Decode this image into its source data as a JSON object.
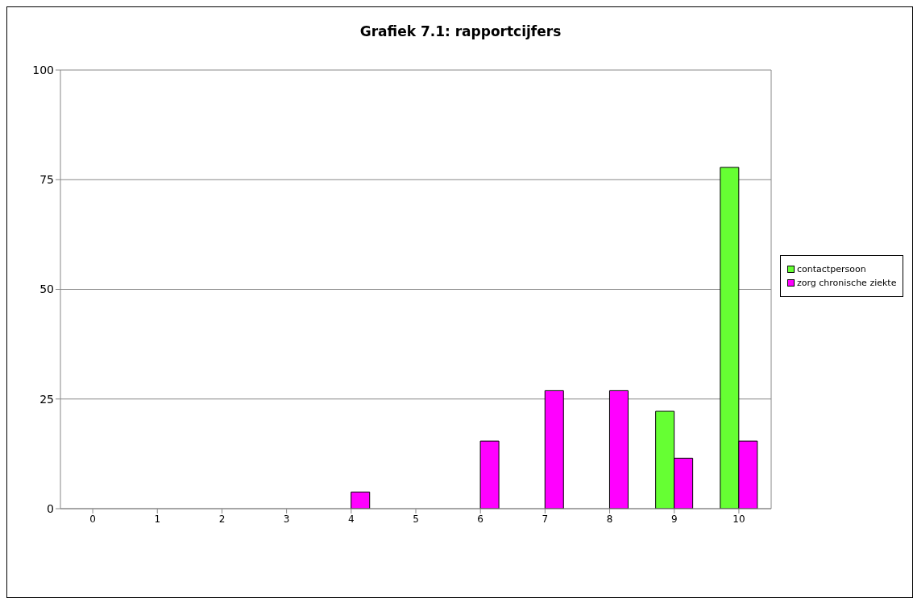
{
  "chart_data": {
    "type": "bar",
    "title": "Grafiek 7.1: rapportcijfers",
    "categories": [
      "0",
      "1",
      "2",
      "3",
      "4",
      "5",
      "6",
      "7",
      "8",
      "9",
      "10"
    ],
    "series": [
      {
        "name": "contactpersoon",
        "color": "#66ff33",
        "values": [
          0,
          0,
          0,
          0,
          0,
          0,
          0,
          0,
          0,
          22.2,
          77.8
        ]
      },
      {
        "name": "zorg chronische ziekte",
        "color": "#ff00ff",
        "values": [
          0,
          0,
          0,
          0,
          3.8,
          0,
          15.4,
          26.9,
          26.9,
          11.5,
          15.4
        ]
      }
    ],
    "ylim": [
      0,
      100
    ],
    "yticks": [
      0,
      25,
      50,
      75,
      100
    ],
    "grid": "y",
    "legend": "right"
  }
}
